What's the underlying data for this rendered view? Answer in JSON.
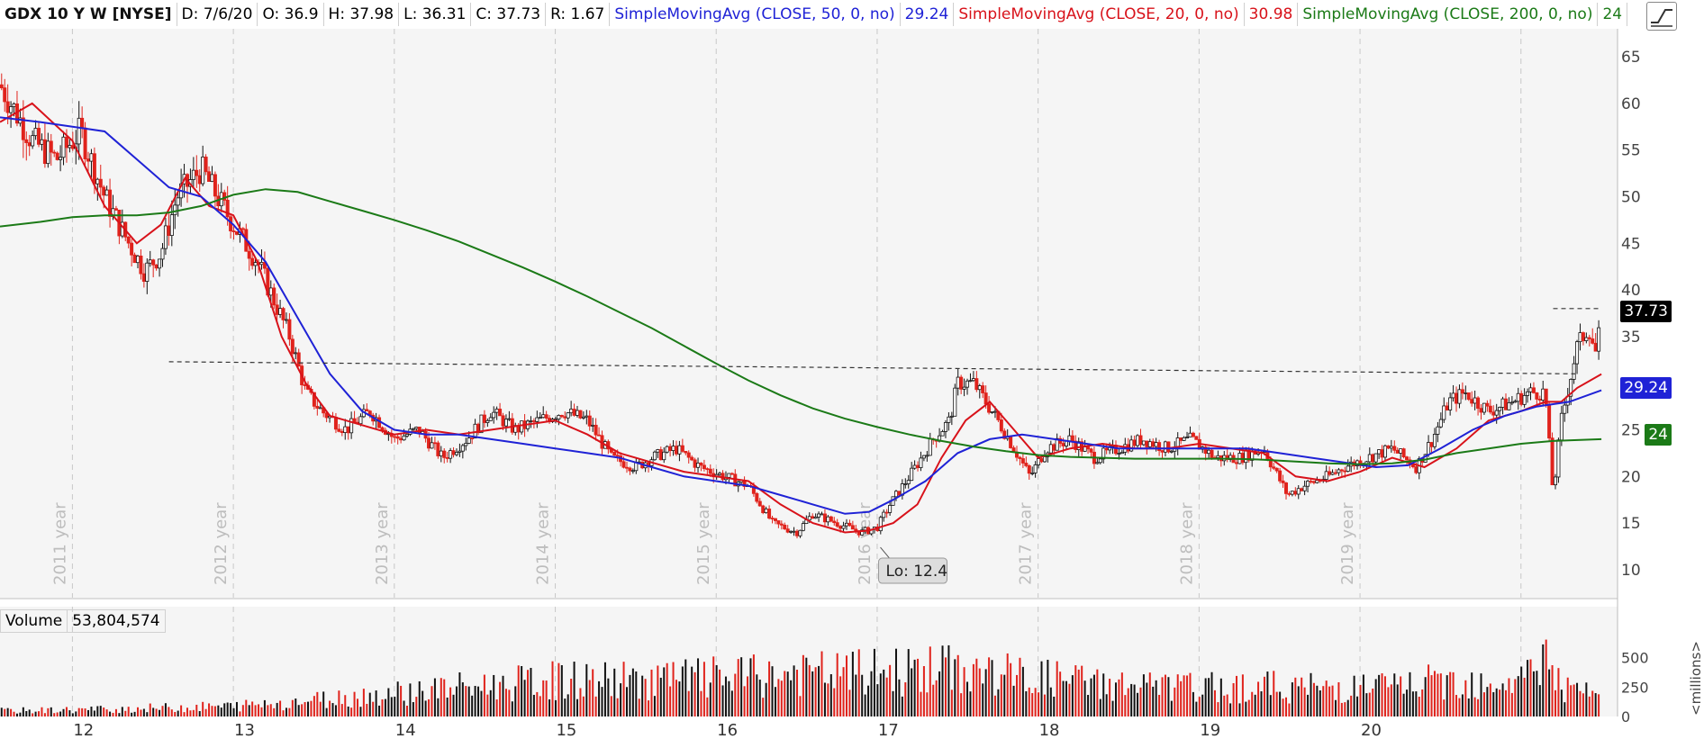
{
  "header": {
    "symbol": "GDX 10 Y W [NYSE]",
    "date": "D: 7/6/20",
    "open": "O: 36.9",
    "high": "H: 37.98",
    "low": "L: 36.31",
    "close": "C: 37.73",
    "range": "R: 1.67",
    "sma50_label": "SimpleMovingAvg (CLOSE, 50, 0, no)",
    "sma50_value": "29.24",
    "sma20_label": "SimpleMovingAvg (CLOSE, 20, 0, no)",
    "sma20_value": "30.98",
    "sma200_label": "SimpleMovingAvg (CLOSE, 200, 0, no)",
    "sma200_value": "24"
  },
  "volume_header": {
    "label": "Volume",
    "value": "53,804,574"
  },
  "price_tags": {
    "last": "37.73",
    "sma50": "29.24",
    "sma200": "24"
  },
  "colors": {
    "up": "#111111",
    "down": "#e0231c",
    "sma50": "#1f22d6",
    "sma20": "#d8121a",
    "sma200": "#1b7a17",
    "grid": "#c8c8c8",
    "bg": "#f5f5f5"
  },
  "chart_data": {
    "type": "candlestick",
    "y_ticks": [
      10,
      15,
      20,
      25,
      30,
      35,
      40,
      45,
      50,
      55,
      60,
      65
    ],
    "ylim": [
      7,
      68
    ],
    "volume_ticks": [
      0,
      250,
      500
    ],
    "volume_unit_label": "<millions>",
    "x_ticks": [
      "12",
      "13",
      "14",
      "15",
      "16",
      "17",
      "18",
      "19",
      "20"
    ],
    "year_labels": [
      "2011 year",
      "2012 year",
      "2013 year",
      "2014 year",
      "2015 year",
      "2016 year",
      "2017 year",
      "2018 year",
      "2019 year"
    ],
    "xlim": [
      2010.55,
      2020.6
    ],
    "annotations": {
      "low_label": "Lo: 12.4",
      "low_x": 2016.02,
      "low_y": 12.4
    },
    "resistance_line": {
      "x": [
        2011.6,
        2020.35
      ],
      "y": [
        32.3,
        31.0
      ]
    },
    "recent_high_line": {
      "x": [
        2020.2,
        2020.5
      ],
      "y": [
        38.0,
        38.0
      ]
    },
    "price_path": {
      "x": [
        2010.55,
        2010.75,
        2010.9,
        2011.05,
        2011.2,
        2011.35,
        2011.45,
        2011.55,
        2011.65,
        2011.8,
        2012.0,
        2012.15,
        2012.25,
        2012.35,
        2012.45,
        2012.55,
        2012.7,
        2012.85,
        2013.0,
        2013.15,
        2013.3,
        2013.45,
        2013.6,
        2013.75,
        2013.9,
        2014.05,
        2014.2,
        2014.35,
        2014.5,
        2014.6,
        2014.75,
        2014.9,
        2015.05,
        2015.2,
        2015.35,
        2015.5,
        2015.6,
        2015.75,
        2015.9,
        2016.0,
        2016.08,
        2016.2,
        2016.35,
        2016.45,
        2016.5,
        2016.6,
        2016.75,
        2016.85,
        2016.95,
        2017.05,
        2017.2,
        2017.35,
        2017.5,
        2017.65,
        2017.8,
        2017.95,
        2018.1,
        2018.25,
        2018.4,
        2018.55,
        2018.65,
        2018.8,
        2018.9,
        2019.05,
        2019.2,
        2019.35,
        2019.45,
        2019.55,
        2019.65,
        2019.8,
        2019.95,
        2020.05,
        2020.15,
        2020.2,
        2020.25,
        2020.35,
        2020.42,
        2020.47,
        2020.5
      ],
      "y": [
        62,
        56,
        54,
        57,
        50,
        45,
        42,
        44,
        50,
        53,
        47,
        43,
        39,
        35,
        29,
        27,
        25,
        27,
        24,
        25,
        22,
        24,
        27,
        25,
        26,
        27,
        26,
        22,
        21,
        22,
        23,
        21,
        20,
        19,
        15,
        14,
        16,
        15,
        14,
        14.5,
        17,
        20,
        24,
        26,
        30,
        30,
        26,
        23,
        20,
        23,
        24,
        22,
        23,
        24,
        23,
        24,
        22,
        22,
        23,
        18,
        19,
        20,
        21,
        22,
        23,
        21,
        24,
        28,
        29,
        27,
        28,
        29,
        29,
        18,
        26,
        34,
        36,
        33,
        37.7
      ]
    },
    "series": [
      {
        "name": "SimpleMovingAvg (CLOSE, 20, 0, no)",
        "x": [
          2010.55,
          2010.75,
          2011.0,
          2011.2,
          2011.4,
          2011.55,
          2011.7,
          2011.85,
          2012.0,
          2012.15,
          2012.3,
          2012.45,
          2012.6,
          2012.8,
          2013.0,
          2013.2,
          2013.4,
          2013.6,
          2013.8,
          2014.0,
          2014.2,
          2014.4,
          2014.6,
          2014.8,
          2015.0,
          2015.2,
          2015.4,
          2015.6,
          2015.8,
          2015.95,
          2016.1,
          2016.25,
          2016.4,
          2016.55,
          2016.7,
          2016.85,
          2017.0,
          2017.2,
          2017.4,
          2017.6,
          2017.8,
          2018.0,
          2018.2,
          2018.4,
          2018.6,
          2018.8,
          2019.0,
          2019.2,
          2019.4,
          2019.6,
          2019.8,
          2020.0,
          2020.15,
          2020.25,
          2020.35,
          2020.5
        ],
        "y": [
          58,
          60,
          56,
          49,
          45,
          47,
          52,
          49,
          48,
          43,
          35,
          30,
          26.5,
          25.5,
          24.5,
          25,
          24.5,
          25,
          25.5,
          26,
          24.5,
          22.5,
          21.5,
          20.5,
          20,
          19.5,
          17,
          15,
          14,
          14.2,
          15,
          17,
          22,
          26,
          28,
          25,
          22,
          23,
          23.5,
          23,
          23,
          23.5,
          23,
          22.5,
          20,
          19.5,
          20.5,
          22,
          21,
          23,
          26,
          27,
          28,
          28,
          29.5,
          30.98
        ]
      },
      {
        "name": "SimpleMovingAvg (CLOSE, 50, 0, no)",
        "x": [
          2010.55,
          2010.8,
          2011.0,
          2011.2,
          2011.4,
          2011.6,
          2011.8,
          2012.0,
          2012.2,
          2012.4,
          2012.6,
          2012.8,
          2013.0,
          2013.2,
          2013.4,
          2013.6,
          2013.8,
          2014.0,
          2014.2,
          2014.4,
          2014.6,
          2014.8,
          2015.0,
          2015.2,
          2015.4,
          2015.6,
          2015.8,
          2015.95,
          2016.1,
          2016.3,
          2016.5,
          2016.7,
          2016.9,
          2017.1,
          2017.3,
          2017.5,
          2017.7,
          2017.9,
          2018.1,
          2018.3,
          2018.5,
          2018.7,
          2018.9,
          2019.1,
          2019.3,
          2019.5,
          2019.7,
          2019.9,
          2020.1,
          2020.3,
          2020.5
        ],
        "y": [
          58.5,
          58,
          57.5,
          57,
          54,
          51,
          50,
          47,
          43,
          37,
          31,
          27,
          25,
          24.5,
          24.5,
          24,
          23.5,
          23,
          22.5,
          22,
          21,
          20,
          19.5,
          19,
          18,
          17,
          16,
          16.2,
          17.5,
          19.5,
          22.5,
          24,
          24.5,
          24,
          23.5,
          23,
          23,
          23,
          23,
          23,
          22.5,
          22,
          21.5,
          21,
          21.2,
          23,
          25,
          26.5,
          27.5,
          28,
          29.24
        ]
      },
      {
        "name": "SimpleMovingAvg (CLOSE, 200, 0, no)",
        "x": [
          2010.55,
          2010.8,
          2011.0,
          2011.2,
          2011.4,
          2011.6,
          2011.8,
          2012.0,
          2012.2,
          2012.4,
          2012.6,
          2012.8,
          2013.0,
          2013.2,
          2013.4,
          2013.6,
          2013.8,
          2014.0,
          2014.2,
          2014.4,
          2014.6,
          2014.8,
          2015.0,
          2015.2,
          2015.4,
          2015.6,
          2015.8,
          2016.0,
          2016.2,
          2016.4,
          2016.6,
          2016.8,
          2017.0,
          2017.2,
          2017.4,
          2017.6,
          2017.8,
          2018.0,
          2018.2,
          2018.4,
          2018.6,
          2018.8,
          2019.0,
          2019.2,
          2019.4,
          2019.6,
          2019.8,
          2020.0,
          2020.2,
          2020.5
        ],
        "y": [
          46.8,
          47.3,
          47.8,
          48.0,
          48.0,
          48.3,
          49.0,
          50.2,
          50.8,
          50.5,
          49.5,
          48.5,
          47.5,
          46.4,
          45.2,
          43.8,
          42.4,
          40.9,
          39.3,
          37.6,
          35.9,
          34.0,
          32.1,
          30.3,
          28.7,
          27.3,
          26.2,
          25.3,
          24.5,
          23.8,
          23.2,
          22.7,
          22.3,
          22.1,
          22.0,
          21.9,
          21.9,
          21.9,
          21.9,
          21.8,
          21.6,
          21.4,
          21.3,
          21.4,
          21.8,
          22.5,
          23.0,
          23.5,
          23.8,
          24.0
        ]
      }
    ],
    "volume_path": {
      "x": [
        2010.55,
        2011.0,
        2011.5,
        2012.0,
        2012.4,
        2012.8,
        2013.2,
        2013.6,
        2014.0,
        2014.4,
        2014.8,
        2015.2,
        2015.6,
        2016.0,
        2016.4,
        2016.8,
        2017.2,
        2017.6,
        2018.0,
        2018.4,
        2018.8,
        2019.2,
        2019.6,
        2020.0,
        2020.15,
        2020.25,
        2020.5
      ],
      "y": [
        60,
        70,
        90,
        110,
        160,
        220,
        280,
        330,
        380,
        380,
        400,
        420,
        450,
        470,
        500,
        440,
        380,
        320,
        300,
        320,
        300,
        320,
        380,
        380,
        680,
        300,
        200
      ]
    },
    "volume_ylim": [
      0,
      720
    ]
  }
}
